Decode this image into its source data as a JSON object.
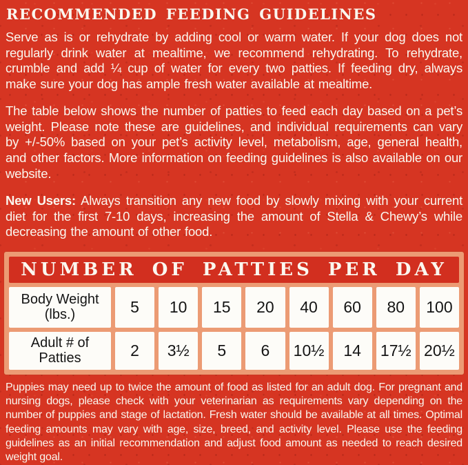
{
  "label": {
    "title": "RECOMMENDED FEEDING GUIDELINES",
    "intro": "Serve as is or rehydrate by adding cool or warm water.  If your dog does not regularly drink water at mealtime, we recommend rehydrating.  To rehydrate, crumble and add ¼ cup of water for every two patties.  If feeding dry, always make sure your dog has ample fresh water available at mealtime.",
    "table_note": "The table below shows the number of patties to feed each day based on a pet’s weight.  Please note these are guidelines, and individual requirements can vary by +/-50% based on your pet’s activity level, metabolism, age, general health, and other factors.  More information on feeding guidelines is also available on our website.",
    "new_users_label": "New Users:",
    "new_users_text": " Always transition any new food by slowly mixing with your current diet for the first 7-10 days, increasing the amount of Stella & Chewy’s while decreasing the amount of other food.",
    "footnote": "Puppies may need up to twice the amount of food as listed for an adult dog. For pregnant and nursing dogs, please check with your veterinarian as requirements vary depending on the number of puppies and stage of lactation. Fresh water should be available at all times. Optimal feeding amounts may vary with age, size, breed, and activity level. Please use the feeding guidelines as an initial recommendation and adjust food amount as needed to reach desired weight goal."
  },
  "feeding_table": {
    "title": "NUMBER OF PATTIES PER DAY",
    "row_headers": [
      {
        "line1": "Body Weight",
        "line2": "(lbs.)"
      },
      {
        "line1": "Adult # of",
        "line2": "Patties"
      }
    ],
    "body_weight_lbs": [
      "5",
      "10",
      "15",
      "20",
      "40",
      "60",
      "80",
      "100"
    ],
    "adult_patties": [
      "2",
      "3½",
      "5",
      "6",
      "10½",
      "14",
      "17½",
      "20½"
    ]
  },
  "colors": {
    "background_red": "#d63522",
    "table_border_salmon": "#ec9b74",
    "table_header_red": "#d22f1f",
    "cell_white": "#fdfcf8",
    "text_cream": "#faf6ee",
    "cell_text_black": "#141414"
  }
}
